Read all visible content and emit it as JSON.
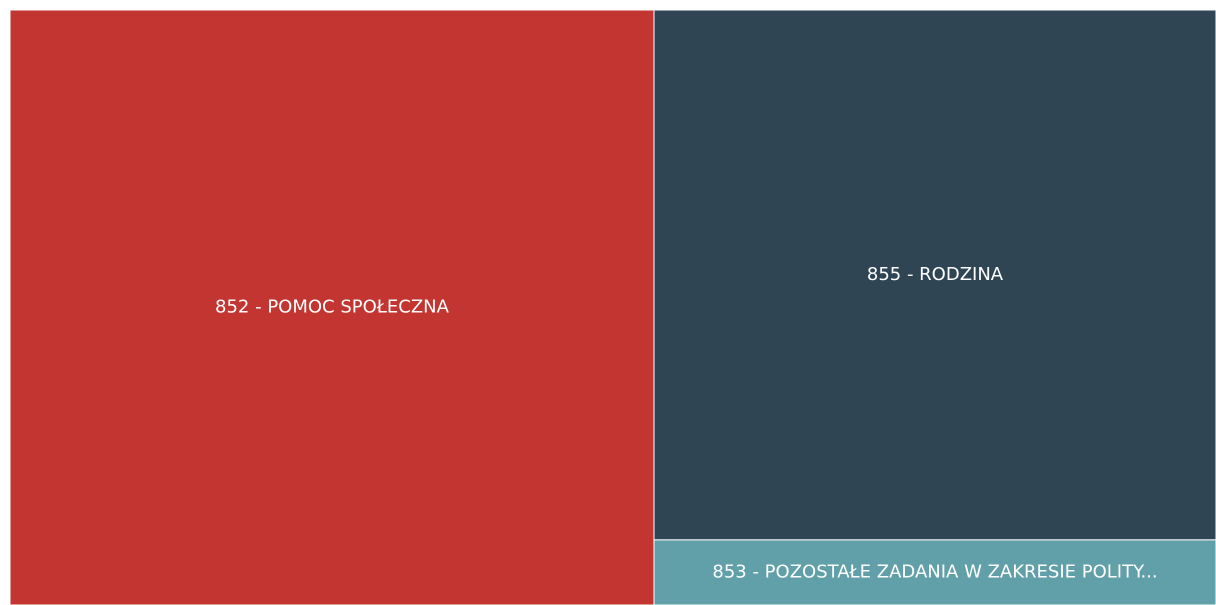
{
  "chart_data": {
    "type": "treemap",
    "categories": [
      "852 - POMOC SPOŁECZNA",
      "855 - RODZINA",
      "853 - POZOSTAŁE ZADANIA W ZAKRESIE POLITY..."
    ],
    "values": [
      53.4,
      41.5,
      5.1
    ],
    "colors": [
      "#c23531",
      "#2f4554",
      "#61a0a8"
    ]
  }
}
